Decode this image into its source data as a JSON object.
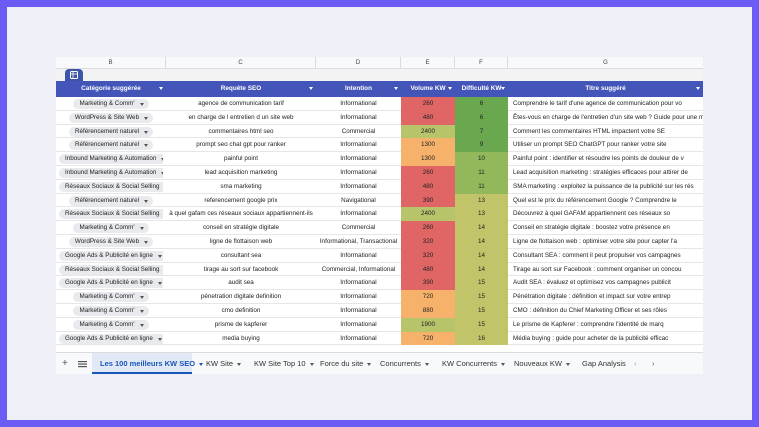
{
  "columns": [
    "B",
    "C",
    "D",
    "E",
    "F",
    "G"
  ],
  "headers": {
    "category": "Catégorie suggérée",
    "keyword": "Requête SEO",
    "intent": "Intention",
    "volume": "Volume KW",
    "difficulty": "Difficulté KW",
    "title": "Titre suggéré"
  },
  "rows": [
    {
      "category": "Marketing & Comm'",
      "keyword": "agence de communication tarif",
      "intent": "Informational",
      "volume": "260",
      "difficulty": "6",
      "title": "Comprendre le tarif d'une agence de communication pour vo"
    },
    {
      "category": "WordPress & Site Web",
      "keyword": "en charge de l entretien d un site web",
      "intent": "Informational",
      "volume": "480",
      "difficulty": "6",
      "title": "Êtes-vous en charge de l'entretien d'un site web ? Guide pour une m"
    },
    {
      "category": "Référencement naturel",
      "keyword": "commentaires html seo",
      "intent": "Commercial",
      "volume": "2400",
      "difficulty": "7",
      "title": "Comment les commentaires HTML impactent votre SE"
    },
    {
      "category": "Référencement naturel",
      "keyword": "prompt seo chat gpt pour ranker",
      "intent": "Informational",
      "volume": "1300",
      "difficulty": "9",
      "title": "Utiliser un prompt SEO ChatGPT pour ranker votre site"
    },
    {
      "category": "Inbound Marketing & Automation",
      "keyword": "painful point",
      "intent": "Informational",
      "volume": "1300",
      "difficulty": "10",
      "title": "Painful point : identifier et résoudre les points de douleur de v"
    },
    {
      "category": "Inbound Marketing & Automation",
      "keyword": "lead acquisition marketing",
      "intent": "Informational",
      "volume": "260",
      "difficulty": "11",
      "title": "Lead acquisition marketing : stratégies efficaces pour attirer de"
    },
    {
      "category": "Réseaux Sociaux & Social Selling",
      "keyword": "sma marketing",
      "intent": "Informational",
      "volume": "480",
      "difficulty": "11",
      "title": "SMA marketing : exploitez la puissance de la publicité sur les rés"
    },
    {
      "category": "Référencement naturel",
      "keyword": "referencement google prix",
      "intent": "Navigational",
      "volume": "390",
      "difficulty": "13",
      "title": "Quel est le prix du référencement Google ? Comprendre le"
    },
    {
      "category": "Réseaux Sociaux & Social Selling",
      "keyword": "à quel gafam ces réseaux sociaux appartiennent-ils",
      "intent": "Informational",
      "volume": "2400",
      "difficulty": "13",
      "title": "Découvrez à quel GAFAM appartiennent ces réseaux so"
    },
    {
      "category": "Marketing & Comm'",
      "keyword": "conseil en stratégie digitale",
      "intent": "Commercial",
      "volume": "260",
      "difficulty": "14",
      "title": "Conseil en stratégie digitale : boostez votre présence en"
    },
    {
      "category": "WordPress & Site Web",
      "keyword": "ligne de flottaison web",
      "intent": "Informational, Transactional",
      "volume": "320",
      "difficulty": "14",
      "title": "Ligne de flottaison web : optimiser votre site pour capter l'a"
    },
    {
      "category": "Google Ads & Publicité en ligne",
      "keyword": "consultant sea",
      "intent": "Informational",
      "volume": "320",
      "difficulty": "14",
      "title": "Consultant SEA : comment il peut propulser vos campagnes"
    },
    {
      "category": "Réseaux Sociaux & Social Selling",
      "keyword": "tirage au sort sur facebook",
      "intent": "Commercial, Informational",
      "volume": "480",
      "difficulty": "14",
      "title": "Tirage au sort sur Facebook : comment organiser un concou"
    },
    {
      "category": "Google Ads & Publicité en ligne",
      "keyword": "audit sea",
      "intent": "Informational",
      "volume": "390",
      "difficulty": "15",
      "title": "Audit SEA : évaluez et optimisez vos campagnes publicit"
    },
    {
      "category": "Marketing & Comm'",
      "keyword": "pénetration digitale definition",
      "intent": "Informational",
      "volume": "720",
      "difficulty": "15",
      "title": "Pénétration digitale : définition et impact sur votre entrep"
    },
    {
      "category": "Marketing & Comm'",
      "keyword": "cmo definition",
      "intent": "Informational",
      "volume": "880",
      "difficulty": "15",
      "title": "CMO : définition du Chief Marketing Officer et ses rôles"
    },
    {
      "category": "Marketing & Comm'",
      "keyword": "prisme de kapferer",
      "intent": "Informational",
      "volume": "1900",
      "difficulty": "15",
      "title": "Le prisme de Kapferer : comprendre l'identité de marq"
    },
    {
      "category": "Google Ads & Publicité en ligne",
      "keyword": "media buying",
      "intent": "Informational",
      "volume": "720",
      "difficulty": "16",
      "title": "Média buying : guide pour acheter de la publicité efficac"
    }
  ],
  "tabs": [
    {
      "label": "Les 100 meilleurs KW SEO",
      "active": true
    },
    {
      "label": "KW Site",
      "active": false
    },
    {
      "label": "KW Site Top 10",
      "active": false
    },
    {
      "label": "Force du site",
      "active": false
    },
    {
      "label": "Concurrents",
      "active": false
    },
    {
      "label": "KW Concurrents",
      "active": false
    },
    {
      "label": "Nouveaux KW",
      "active": false
    },
    {
      "label": "Gap Analysis",
      "active": false
    }
  ],
  "colors": {
    "accent": "#4355b9",
    "vol_low": "#e06666",
    "vol_mid": "#f6b26b",
    "vol_high": "#b8c46a",
    "dif_low": "#6aa84f",
    "dif_high": "#c2c46a"
  }
}
